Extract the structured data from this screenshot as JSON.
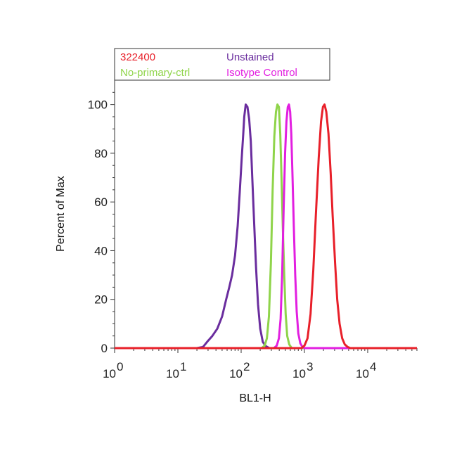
{
  "chart_data": {
    "type": "line",
    "xlabel": "BL1-H",
    "ylabel": "Percent of Max",
    "x_scale": "log",
    "xlim": [
      1,
      60000
    ],
    "ylim": [
      0,
      110
    ],
    "x_ticks": [
      {
        "value": 1,
        "base": "10",
        "exp": "0"
      },
      {
        "value": 10,
        "base": "10",
        "exp": "1"
      },
      {
        "value": 100,
        "base": "10",
        "exp": "2"
      },
      {
        "value": 1000,
        "base": "10",
        "exp": "3"
      },
      {
        "value": 10000,
        "base": "10",
        "exp": "4"
      }
    ],
    "y_ticks": [
      0,
      20,
      40,
      60,
      80,
      100
    ],
    "legend": {
      "position": "top",
      "entries": [
        {
          "label": "322400",
          "color": "#e8202a"
        },
        {
          "label": "Unstained",
          "color": "#6a2d9e"
        },
        {
          "label": "No-primary-ctrl",
          "color": "#8fd44a"
        },
        {
          "label": "Isotype Control",
          "color": "#e21fe0"
        }
      ]
    },
    "series": [
      {
        "name": "Unstained",
        "color": "#6a2d9e",
        "points": [
          [
            1,
            0
          ],
          [
            20,
            0
          ],
          [
            25,
            0.5
          ],
          [
            30,
            3
          ],
          [
            35,
            5
          ],
          [
            42,
            8
          ],
          [
            50,
            13
          ],
          [
            58,
            20
          ],
          [
            65,
            25
          ],
          [
            72,
            30
          ],
          [
            80,
            38
          ],
          [
            88,
            50
          ],
          [
            95,
            64
          ],
          [
            102,
            78
          ],
          [
            108,
            88
          ],
          [
            112,
            95
          ],
          [
            118,
            100
          ],
          [
            126,
            99
          ],
          [
            134,
            94
          ],
          [
            142,
            85
          ],
          [
            150,
            70
          ],
          [
            160,
            52
          ],
          [
            172,
            33
          ],
          [
            185,
            18
          ],
          [
            200,
            8
          ],
          [
            220,
            2.5
          ],
          [
            245,
            0.8
          ],
          [
            280,
            0
          ],
          [
            60000,
            0
          ]
        ]
      },
      {
        "name": "No-primary-ctrl",
        "color": "#8fd44a",
        "points": [
          [
            1,
            0
          ],
          [
            210,
            0
          ],
          [
            235,
            1
          ],
          [
            255,
            4
          ],
          [
            275,
            13
          ],
          [
            295,
            35
          ],
          [
            315,
            65
          ],
          [
            335,
            87
          ],
          [
            355,
            97
          ],
          [
            375,
            100
          ],
          [
            395,
            99
          ],
          [
            415,
            88
          ],
          [
            435,
            70
          ],
          [
            455,
            50
          ],
          [
            480,
            30
          ],
          [
            505,
            14
          ],
          [
            535,
            5
          ],
          [
            575,
            1.5
          ],
          [
            630,
            0
          ],
          [
            60000,
            0
          ]
        ]
      },
      {
        "name": "Isotype Control",
        "color": "#e21fe0",
        "points": [
          [
            1,
            0
          ],
          [
            330,
            0
          ],
          [
            365,
            1
          ],
          [
            395,
            4
          ],
          [
            420,
            12
          ],
          [
            445,
            30
          ],
          [
            470,
            58
          ],
          [
            495,
            80
          ],
          [
            520,
            93
          ],
          [
            545,
            99
          ],
          [
            570,
            100
          ],
          [
            595,
            97
          ],
          [
            620,
            88
          ],
          [
            650,
            70
          ],
          [
            680,
            50
          ],
          [
            715,
            30
          ],
          [
            755,
            15
          ],
          [
            800,
            6
          ],
          [
            860,
            2
          ],
          [
            930,
            0.5
          ],
          [
            1000,
            0
          ],
          [
            60000,
            0
          ]
        ]
      },
      {
        "name": "322400",
        "color": "#e8202a",
        "points": [
          [
            1,
            0
          ],
          [
            900,
            0
          ],
          [
            1000,
            1
          ],
          [
            1120,
            4
          ],
          [
            1250,
            14
          ],
          [
            1380,
            32
          ],
          [
            1520,
            55
          ],
          [
            1680,
            78
          ],
          [
            1830,
            93
          ],
          [
            1960,
            99
          ],
          [
            2080,
            100
          ],
          [
            2220,
            97
          ],
          [
            2400,
            88
          ],
          [
            2600,
            72
          ],
          [
            2800,
            54
          ],
          [
            3050,
            35
          ],
          [
            3300,
            20
          ],
          [
            3600,
            10
          ],
          [
            3950,
            4
          ],
          [
            4350,
            1.5
          ],
          [
            4800,
            0.5
          ],
          [
            5300,
            0
          ],
          [
            60000,
            0
          ]
        ]
      }
    ]
  }
}
